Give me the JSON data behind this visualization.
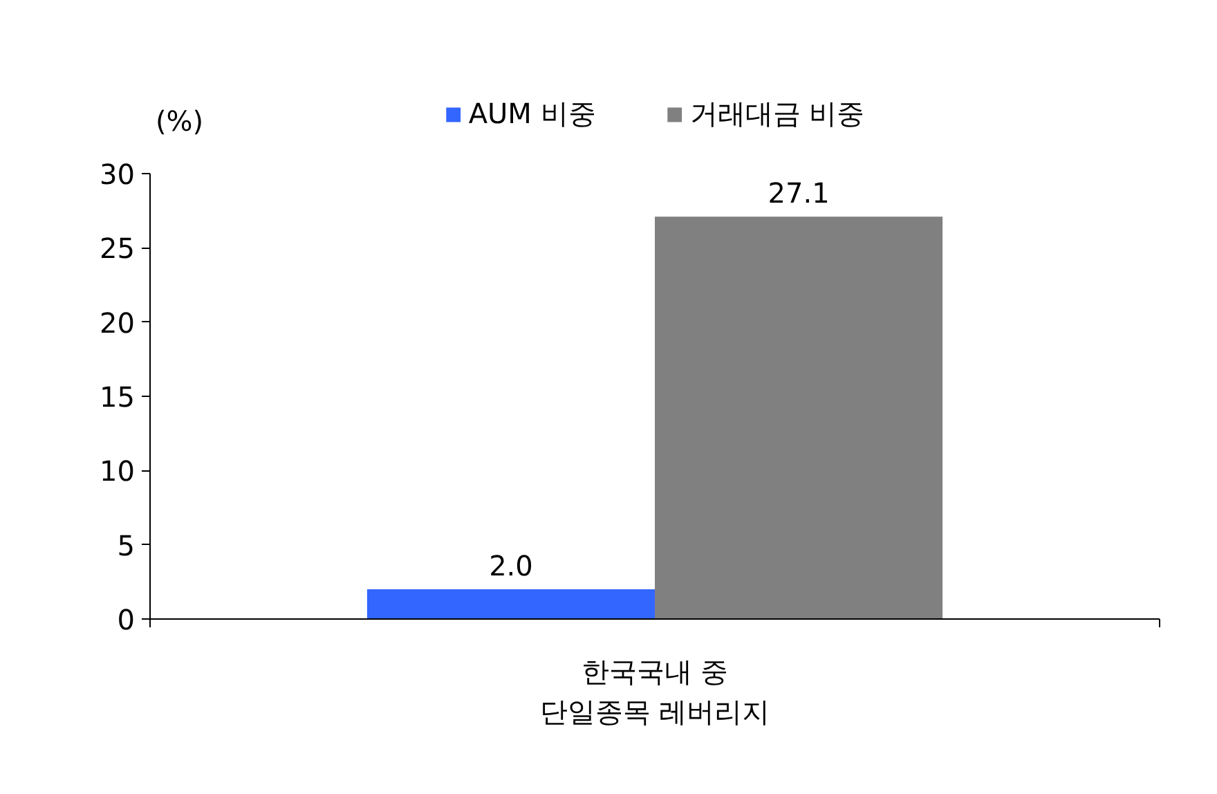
{
  "chart_data": {
    "type": "bar",
    "ylabel": "(%)",
    "categories": [
      "한국국내 중\n단일종목 레버리지"
    ],
    "series": [
      {
        "name": "AUM 비중",
        "color": "#3366ff",
        "values": [
          2.0
        ],
        "value_labels": [
          "2.0"
        ]
      },
      {
        "name": "거래대금 비중",
        "color": "#808080",
        "values": [
          27.1
        ],
        "value_labels": [
          "27.1"
        ]
      }
    ],
    "ylim": [
      0,
      30
    ],
    "yticks": [
      0,
      5,
      10,
      15,
      20,
      25,
      30
    ],
    "grid": false,
    "legend": "top"
  }
}
